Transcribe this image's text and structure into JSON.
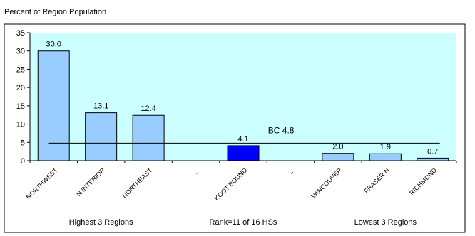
{
  "chart_data": {
    "type": "bar",
    "title": "Percent of Region Population",
    "categories": [
      "NORTHWEST",
      "N INTERIOR",
      "NORTHEAST",
      "...",
      "KOOT BOUND",
      "...",
      "VANCOUVER",
      "FRASER N",
      "RICHMOND"
    ],
    "values": [
      30.0,
      13.1,
      12.4,
      null,
      4.1,
      null,
      2.0,
      1.9,
      0.7
    ],
    "value_labels": [
      "30.0",
      "13.1",
      "12.4",
      "",
      "4.1",
      "",
      "2.0",
      "1.9",
      "0.7"
    ],
    "highlight_index": 4,
    "ylim": [
      0,
      35
    ],
    "yticks": [
      "0",
      "5",
      "10",
      "15",
      "20",
      "25",
      "30",
      "35"
    ],
    "reference_line": {
      "label": "BC 4.8",
      "value": 4.8
    },
    "group_labels": [
      "Highest 3 Regions",
      "Rank=11 of 16 HSs",
      "Lowest 3 Regions"
    ],
    "colors": {
      "plot_background": "#ccffff",
      "bar": "#99ccff",
      "bar_highlight": "#0000ff",
      "line": "#000000"
    }
  }
}
